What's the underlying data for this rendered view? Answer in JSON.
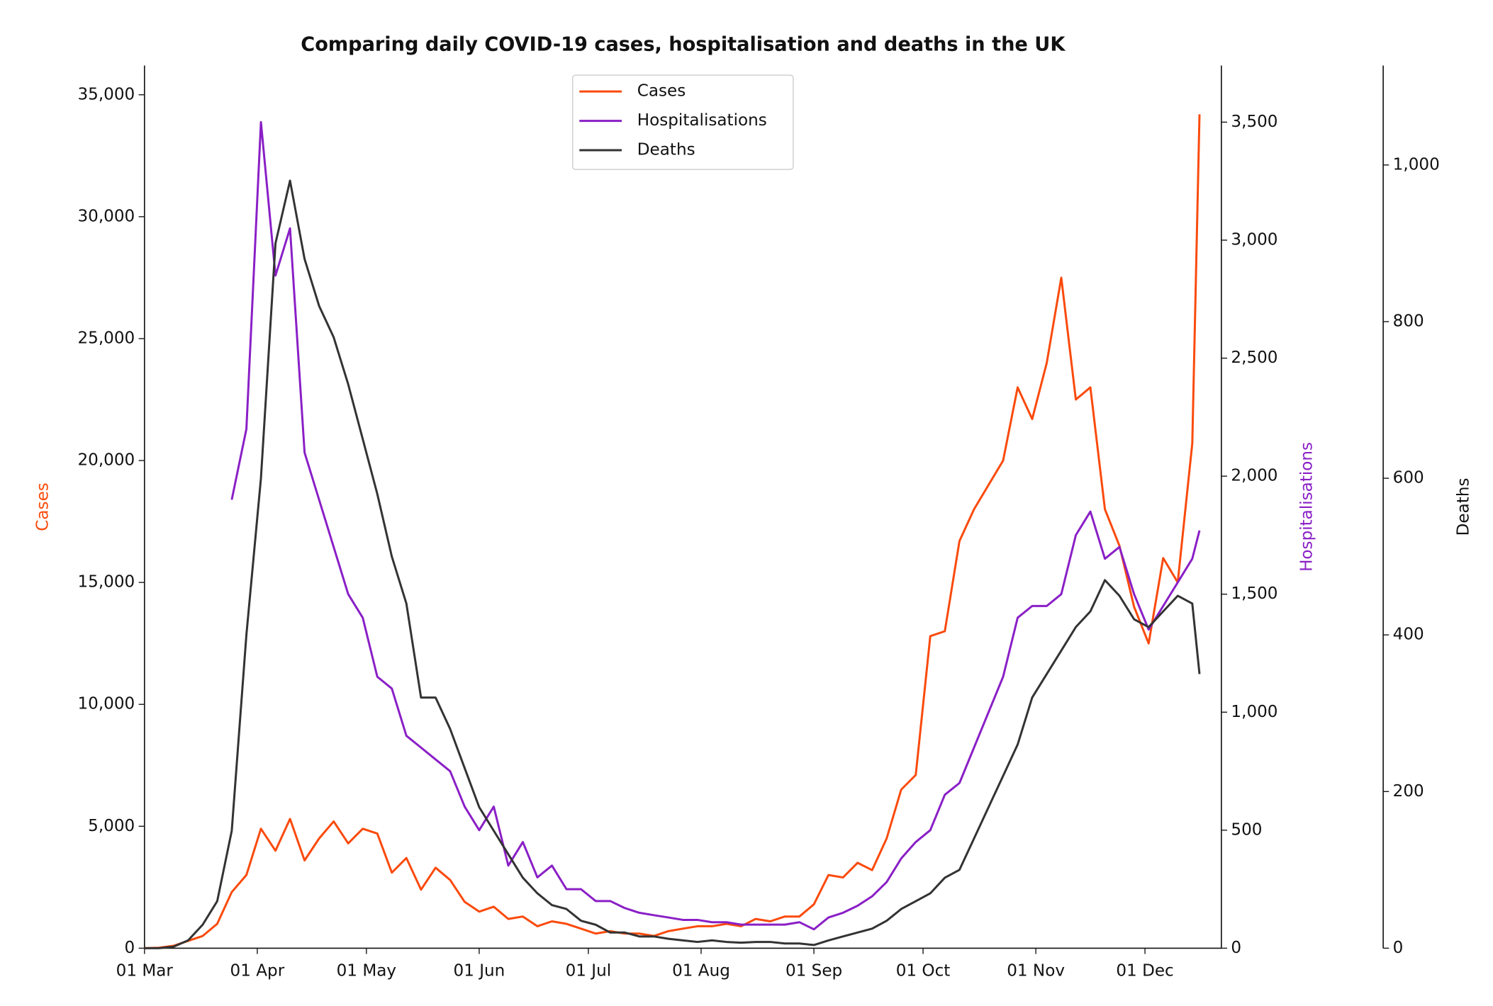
{
  "chart_data": {
    "type": "line",
    "title": "Comparing daily COVID-19 cases, hospitalisation and deaths in the UK",
    "ylabel": "Cases",
    "y2label": "Hospitalisations",
    "y3label": "Deaths",
    "x": [
      "01 Mar",
      "05 Mar",
      "09 Mar",
      "13 Mar",
      "17 Mar",
      "21 Mar",
      "25 Mar",
      "29 Mar",
      "02 Apr",
      "06 Apr",
      "10 Apr",
      "14 Apr",
      "18 Apr",
      "22 Apr",
      "26 Apr",
      "30 Apr",
      "04 May",
      "08 May",
      "12 May",
      "16 May",
      "20 May",
      "24 May",
      "28 May",
      "01 Jun",
      "05 Jun",
      "09 Jun",
      "13 Jun",
      "17 Jun",
      "21 Jun",
      "25 Jun",
      "29 Jun",
      "03 Jul",
      "07 Jul",
      "11 Jul",
      "15 Jul",
      "19 Jul",
      "23 Jul",
      "27 Jul",
      "31 Jul",
      "04 Aug",
      "08 Aug",
      "12 Aug",
      "16 Aug",
      "20 Aug",
      "24 Aug",
      "28 Aug",
      "01 Sep",
      "05 Sep",
      "09 Sep",
      "13 Sep",
      "17 Sep",
      "21 Sep",
      "25 Sep",
      "29 Sep",
      "03 Oct",
      "07 Oct",
      "11 Oct",
      "15 Oct",
      "19 Oct",
      "23 Oct",
      "27 Oct",
      "31 Oct",
      "04 Nov",
      "08 Nov",
      "12 Nov",
      "16 Nov",
      "20 Nov",
      "24 Nov",
      "28 Nov",
      "02 Dec",
      "06 Dec",
      "10 Dec",
      "14 Dec",
      "16 Dec"
    ],
    "xlim": [
      "01 Mar",
      "22 Dec"
    ],
    "xticks": [
      "01 Mar",
      "01 Apr",
      "01 May",
      "01 Jun",
      "01 Jul",
      "01 Aug",
      "01 Sep",
      "01 Oct",
      "01 Nov",
      "01 Dec"
    ],
    "ylim": [
      0,
      36200
    ],
    "yticks": [
      0,
      {
        "value": 5000,
        "label": "5,000"
      },
      {
        "value": 10000,
        "label": "10,000"
      },
      {
        "value": 15000,
        "label": "15,000"
      },
      {
        "value": 20000,
        "label": "20,000"
      },
      {
        "value": 25000,
        "label": "25,000"
      },
      {
        "value": 30000,
        "label": "30,000"
      },
      {
        "value": 35000,
        "label": "35,000"
      }
    ],
    "y2lim": [
      0,
      3740
    ],
    "y2ticks": [
      0,
      500,
      {
        "value": 1000,
        "label": "1,000"
      },
      {
        "value": 1500,
        "label": "1,500"
      },
      {
        "value": 2000,
        "label": "2,000"
      },
      {
        "value": 2500,
        "label": "2,500"
      },
      {
        "value": 3000,
        "label": "3,000"
      },
      {
        "value": 3500,
        "label": "3,500"
      }
    ],
    "y3lim": [
      0,
      1127
    ],
    "y3ticks": [
      0,
      200,
      400,
      600,
      800,
      {
        "value": 1000,
        "label": "1,000"
      }
    ],
    "legend_loc": "upper center",
    "grid": false,
    "series": [
      {
        "name": "Cases",
        "color": "#fa4a0c",
        "axis": "y",
        "values": [
          0,
          20,
          100,
          300,
          500,
          1000,
          2300,
          3000,
          4900,
          4000,
          5300,
          3600,
          4500,
          5200,
          4300,
          4900,
          4700,
          3100,
          3700,
          2400,
          3300,
          2800,
          1900,
          1500,
          1700,
          1200,
          1300,
          900,
          1100,
          1000,
          800,
          600,
          700,
          600,
          600,
          500,
          700,
          800,
          900,
          900,
          1000,
          900,
          1200,
          1100,
          1300,
          1300,
          1800,
          3000,
          2900,
          3500,
          3200,
          4500,
          6500,
          7100,
          12800,
          13000,
          16700,
          18000,
          19000,
          20000,
          23000,
          21700,
          24000,
          27500,
          22500,
          23000,
          18000,
          16500,
          14000,
          12500,
          16000,
          15000,
          20700,
          34200
        ]
      },
      {
        "name": "Hospitalisations",
        "color": "#8a1fc6",
        "axis": "y2",
        "values": [
          null,
          null,
          null,
          null,
          null,
          null,
          1900,
          2200,
          3500,
          2850,
          3050,
          2100,
          1900,
          1700,
          1500,
          1400,
          1150,
          1100,
          900,
          850,
          800,
          750,
          600,
          500,
          600,
          350,
          450,
          300,
          350,
          250,
          250,
          200,
          200,
          170,
          150,
          140,
          130,
          120,
          120,
          110,
          110,
          100,
          100,
          100,
          100,
          110,
          80,
          130,
          150,
          180,
          220,
          280,
          380,
          450,
          500,
          650,
          700,
          850,
          1000,
          1150,
          1400,
          1450,
          1450,
          1500,
          1750,
          1850,
          1650,
          1700,
          1500,
          1350,
          1450,
          1550,
          1650,
          1770
        ]
      },
      {
        "name": "Deaths",
        "color": "#333333",
        "axis": "y3",
        "values": [
          0,
          0,
          2,
          10,
          30,
          60,
          150,
          400,
          600,
          900,
          980,
          880,
          820,
          780,
          720,
          650,
          580,
          500,
          440,
          320,
          320,
          280,
          230,
          180,
          150,
          120,
          90,
          70,
          55,
          50,
          35,
          30,
          20,
          20,
          15,
          15,
          12,
          10,
          8,
          10,
          8,
          7,
          8,
          8,
          6,
          6,
          4,
          10,
          15,
          20,
          25,
          35,
          50,
          60,
          70,
          90,
          100,
          140,
          180,
          220,
          260,
          320,
          350,
          380,
          410,
          430,
          470,
          450,
          420,
          410,
          430,
          450,
          440,
          350
        ]
      }
    ]
  }
}
